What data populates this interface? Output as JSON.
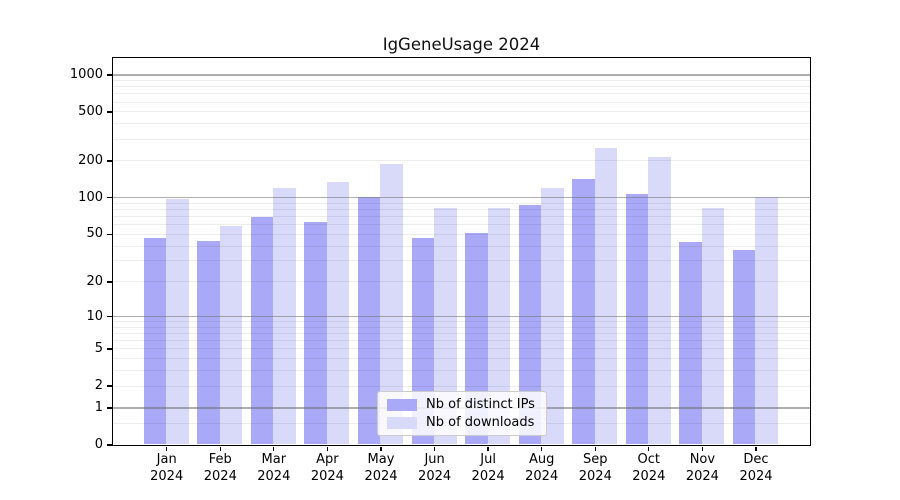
{
  "chart_data": {
    "type": "bar",
    "title": "IgGeneUsage 2024",
    "categories": [
      "Jan",
      "Feb",
      "Mar",
      "Apr",
      "May",
      "Jun",
      "Jul",
      "Aug",
      "Sep",
      "Oct",
      "Nov",
      "Dec"
    ],
    "category_year": "2024",
    "series": [
      {
        "name": "Nb of distinct IPs",
        "color": "#a9a9f7",
        "values": [
          46,
          44,
          69,
          63,
          101,
          46,
          51,
          87,
          141,
          107,
          43,
          37
        ]
      },
      {
        "name": "Nb of downloads",
        "color": "#d9d9fa",
        "values": [
          97,
          58,
          120,
          132,
          188,
          82,
          82,
          120,
          250,
          212,
          82,
          101
        ]
      }
    ],
    "y_scale": "log1p",
    "y_ticks": [
      0,
      1,
      2,
      5,
      10,
      20,
      50,
      100,
      200,
      500,
      1000
    ],
    "ylim": [
      0,
      1300
    ],
    "xlabel": "",
    "ylabel": "",
    "grid": "horizontal major+minor",
    "legend_position": "inside lower center"
  }
}
